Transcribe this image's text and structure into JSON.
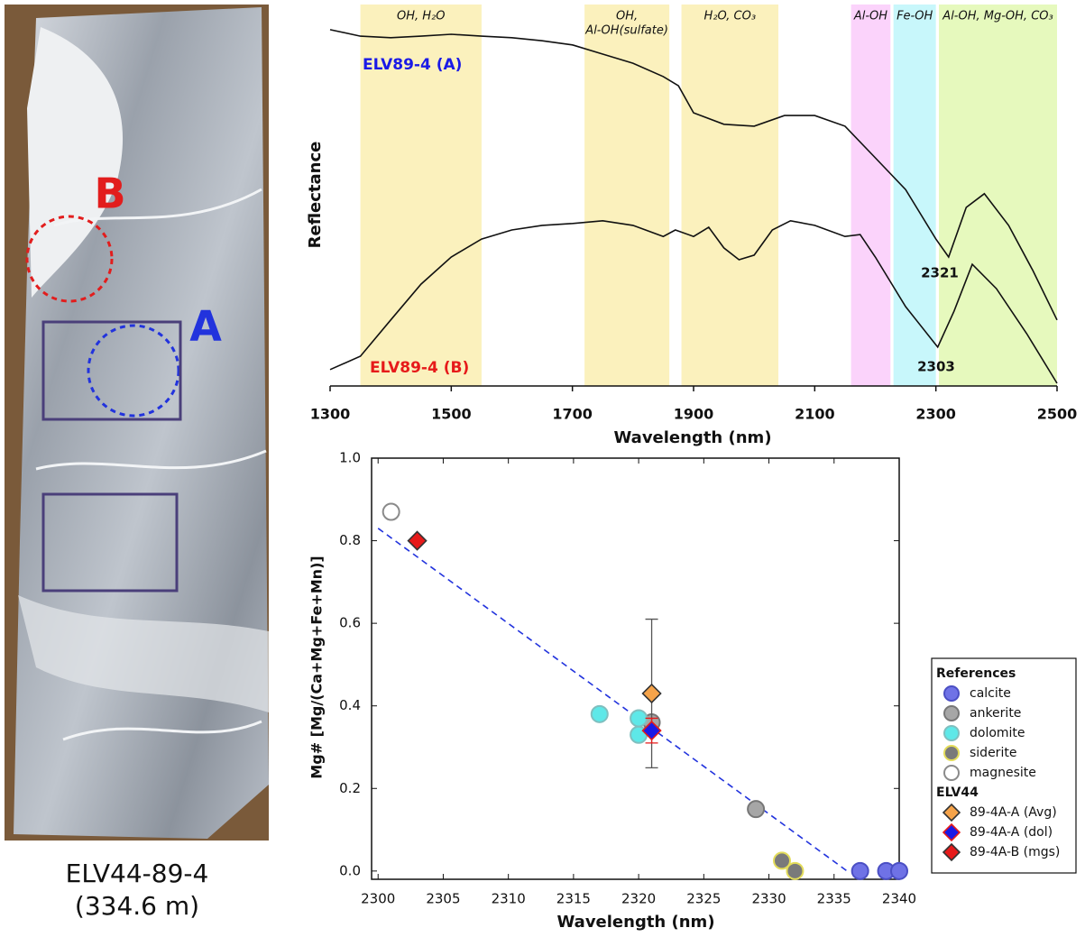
{
  "photo": {
    "labels": [
      "A",
      "B"
    ],
    "caption": [
      "ELV44-89-4",
      "(334.6 m)"
    ]
  },
  "chart_data": [
    {
      "type": "line",
      "y_label": "Reflectance",
      "x_label": "Wavelength (nm)",
      "xlim": [
        1300,
        2500
      ],
      "xticks": [
        1300,
        1500,
        1700,
        1900,
        2100,
        2300,
        2500
      ],
      "ylim": [
        0,
        1
      ],
      "bands": [
        {
          "label": [
            "OH, H₂O"
          ],
          "start": 1350,
          "end": 1550,
          "color": "#fbf1bd"
        },
        {
          "label": [
            "OH,",
            "Al-OH(sulfate)"
          ],
          "start": 1720,
          "end": 1860,
          "color": "#fbf1bd"
        },
        {
          "label": [
            "H₂O, CO₃"
          ],
          "start": 1880,
          "end": 2040,
          "color": "#fbf1bd"
        },
        {
          "label": [
            "Al-OH"
          ],
          "start": 2160,
          "end": 2225,
          "color": "#fbd3fb"
        },
        {
          "label": [
            "Fe-OH"
          ],
          "start": 2230,
          "end": 2300,
          "color": "#c8f7fb"
        },
        {
          "label": [
            "Al-OH, Mg-OH, CO₃"
          ],
          "start": 2305,
          "end": 2500,
          "color": "#e6f9bd"
        }
      ],
      "series": [
        {
          "name": "ELV89-4 (A)",
          "color": "#1a1ae6",
          "x": [
            1300,
            1350,
            1400,
            1450,
            1500,
            1550,
            1600,
            1650,
            1700,
            1750,
            1800,
            1850,
            1875,
            1900,
            1950,
            2000,
            2050,
            2100,
            2150,
            2200,
            2250,
            2300,
            2321,
            2350,
            2380,
            2420,
            2460,
            2500
          ],
          "values": [
            0.934,
            0.917,
            0.913,
            0.917,
            0.922,
            0.917,
            0.913,
            0.905,
            0.894,
            0.87,
            0.846,
            0.811,
            0.787,
            0.716,
            0.686,
            0.681,
            0.709,
            0.709,
            0.681,
            0.598,
            0.515,
            0.385,
            0.338,
            0.468,
            0.504,
            0.421,
            0.303,
            0.173
          ]
        },
        {
          "name": "ELV89-4 (B)",
          "color": "#e61a1a",
          "x": [
            1300,
            1350,
            1400,
            1450,
            1500,
            1550,
            1600,
            1650,
            1700,
            1750,
            1800,
            1850,
            1870,
            1900,
            1925,
            1950,
            1975,
            2000,
            2030,
            2060,
            2100,
            2150,
            2175,
            2200,
            2250,
            2303,
            2330,
            2360,
            2400,
            2450,
            2500
          ],
          "values": [
            0.043,
            0.078,
            0.173,
            0.267,
            0.338,
            0.385,
            0.409,
            0.421,
            0.426,
            0.433,
            0.421,
            0.392,
            0.409,
            0.392,
            0.416,
            0.362,
            0.331,
            0.343,
            0.409,
            0.433,
            0.421,
            0.392,
            0.397,
            0.338,
            0.208,
            0.102,
            0.196,
            0.319,
            0.255,
            0.137,
            0.007
          ]
        }
      ],
      "annotations": [
        "2321",
        "2303"
      ]
    },
    {
      "type": "scatter",
      "y_label": "Mg# [Mg/(Ca+Mg+Fe+Mn)]",
      "x_label": "Wavelength (nm)",
      "xlim": [
        2299.5,
        2340
      ],
      "xticks": [
        2300,
        2305,
        2310,
        2315,
        2320,
        2325,
        2330,
        2335,
        2340
      ],
      "ylim": [
        -0.02,
        1.0
      ],
      "yticks": [
        {
          "value": 0,
          "label": "0.0"
        },
        0.2,
        0.4,
        0.6,
        0.8,
        {
          "value": 1,
          "label": "1.0"
        }
      ],
      "fit_line": {
        "color": "#2233dd",
        "x": [
          2300,
          2336
        ],
        "values": [
          0.83,
          0
        ]
      },
      "groups": [
        {
          "title": "References",
          "series": [
            {
              "name": "calcite",
              "marker": "circle",
              "color": "#6f72e6",
              "edge": "#4b4fc4",
              "x": [
                2337,
                2339,
                2340
              ],
              "values": [
                0,
                0,
                0
              ]
            },
            {
              "name": "ankerite",
              "marker": "circle",
              "color": "#a6a6a6",
              "edge": "#777777",
              "x": [
                2321,
                2329
              ],
              "values": [
                0.36,
                0.15
              ]
            },
            {
              "name": "dolomite",
              "marker": "circle",
              "color": "#5ee8e8",
              "edge": "#7fbfbf",
              "x": [
                2317,
                2320,
                2320
              ],
              "values": [
                0.38,
                0.37,
                0.33
              ]
            },
            {
              "name": "siderite",
              "marker": "circle",
              "color": "#7a7a7a",
              "edge": "#e3dc5a",
              "x": [
                2331,
                2332
              ],
              "values": [
                0.025,
                0
              ]
            },
            {
              "name": "magnesite",
              "marker": "circle",
              "color": "#ffffff",
              "edge": "#8a8a8a",
              "x": [
                2301
              ],
              "values": [
                0.87
              ]
            }
          ]
        },
        {
          "title": "ELV44",
          "series": [
            {
              "name": "89-4A-A (Avg)",
              "marker": "diamond",
              "color": "#f5a34a",
              "edge": "#333333",
              "x": [
                2321
              ],
              "values": [
                0.43
              ],
              "errors": [
                0.18
              ],
              "error_color": "#555555"
            },
            {
              "name": "89-4A-A (dol)",
              "marker": "diamond",
              "color": "#1a1ae6",
              "edge": "#e61a1a",
              "x": [
                2321
              ],
              "values": [
                0.34
              ],
              "errors": [
                0.03
              ],
              "error_color": "#e61a1a"
            },
            {
              "name": "89-4A-B (mgs)",
              "marker": "diamond",
              "color": "#e61a1a",
              "edge": "#333333",
              "x": [
                2303
              ],
              "values": [
                0.8
              ]
            }
          ]
        }
      ]
    }
  ]
}
